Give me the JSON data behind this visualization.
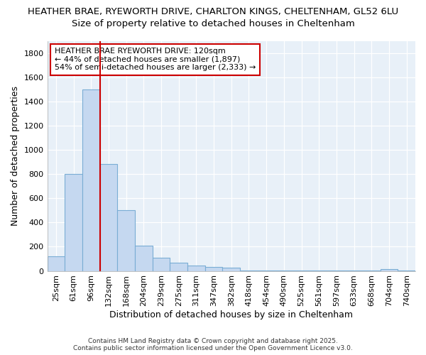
{
  "title_line1": "HEATHER BRAE, RYEWORTH DRIVE, CHARLTON KINGS, CHELTENHAM, GL52 6LU",
  "title_line2": "Size of property relative to detached houses in Cheltenham",
  "xlabel": "Distribution of detached houses by size in Cheltenham",
  "ylabel": "Number of detached properties",
  "categories": [
    "25sqm",
    "61sqm",
    "96sqm",
    "132sqm",
    "168sqm",
    "204sqm",
    "239sqm",
    "275sqm",
    "311sqm",
    "347sqm",
    "382sqm",
    "418sqm",
    "454sqm",
    "490sqm",
    "525sqm",
    "561sqm",
    "597sqm",
    "633sqm",
    "668sqm",
    "704sqm",
    "740sqm"
  ],
  "values": [
    120,
    800,
    1500,
    880,
    500,
    210,
    110,
    65,
    45,
    30,
    25,
    5,
    5,
    5,
    5,
    5,
    5,
    5,
    5,
    15,
    5
  ],
  "bar_color": "#c5d8f0",
  "bar_edgecolor": "#7aadd4",
  "vline_color": "#cc0000",
  "annotation_text": "HEATHER BRAE RYEWORTH DRIVE: 120sqm\n← 44% of detached houses are smaller (1,897)\n54% of semi-detached houses are larger (2,333) →",
  "annotation_box_facecolor": "#ffffff",
  "annotation_box_edgecolor": "#cc0000",
  "ylim": [
    0,
    1900
  ],
  "yticks": [
    0,
    200,
    400,
    600,
    800,
    1000,
    1200,
    1400,
    1600,
    1800
  ],
  "chart_bg_color": "#e8f0f8",
  "figure_bg_color": "#ffffff",
  "grid_color": "#ffffff",
  "footnote": "Contains HM Land Registry data © Crown copyright and database right 2025.\nContains public sector information licensed under the Open Government Licence v3.0.",
  "title1_fontsize": 9.5,
  "title2_fontsize": 9.5,
  "axis_label_fontsize": 9,
  "tick_fontsize": 8,
  "annotation_fontsize": 8
}
